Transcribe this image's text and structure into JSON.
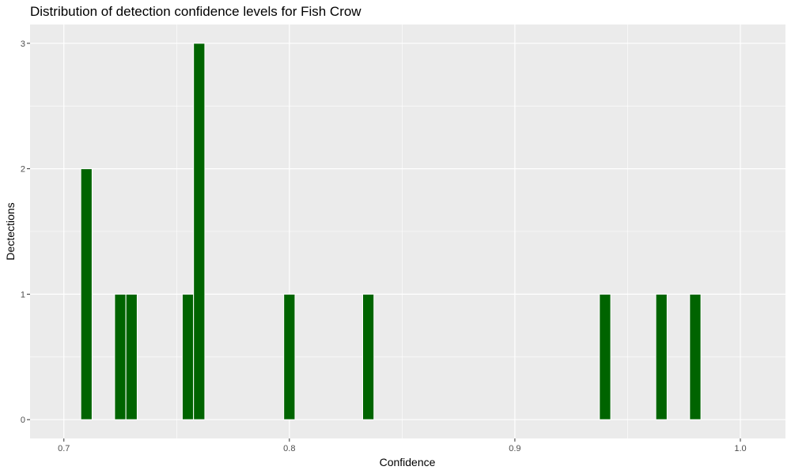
{
  "chart_data": {
    "type": "bar",
    "title": "Distribution of detection confidence levels for Fish Crow",
    "xlabel": "Confidence",
    "ylabel": "Dectections",
    "xlim": [
      0.685,
      1.02
    ],
    "ylim": [
      -0.15,
      3.15
    ],
    "x_ticks": [
      0.7,
      0.8,
      0.9,
      1.0
    ],
    "x_tick_labels": [
      "0.7",
      "0.8",
      "0.9",
      "1.0"
    ],
    "y_ticks": [
      0,
      1,
      2,
      3
    ],
    "y_tick_labels": [
      "0",
      "1",
      "2",
      "3"
    ],
    "grid": true,
    "bar_color": "#006400",
    "panel_color": "#ebebeb",
    "bins": [
      {
        "x": 0.71,
        "count": 2
      },
      {
        "x": 0.725,
        "count": 1
      },
      {
        "x": 0.73,
        "count": 1
      },
      {
        "x": 0.755,
        "count": 1
      },
      {
        "x": 0.76,
        "count": 3
      },
      {
        "x": 0.8,
        "count": 1
      },
      {
        "x": 0.835,
        "count": 1
      },
      {
        "x": 0.94,
        "count": 1
      },
      {
        "x": 0.965,
        "count": 1
      },
      {
        "x": 0.98,
        "count": 1
      }
    ]
  }
}
